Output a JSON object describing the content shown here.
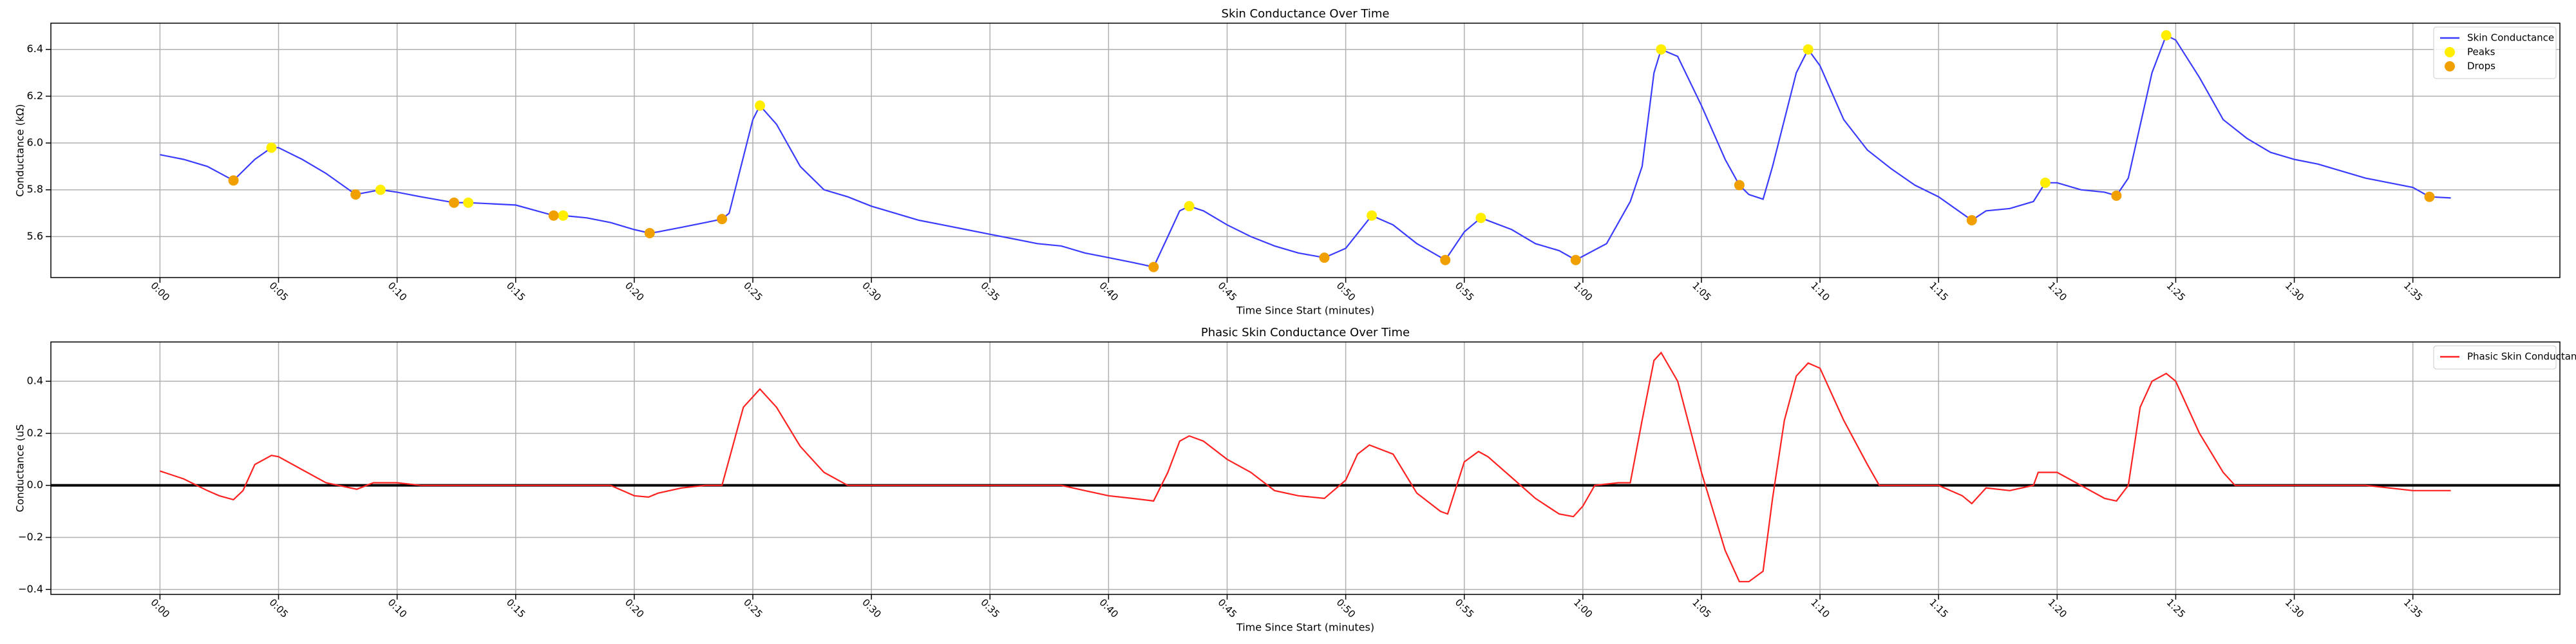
{
  "chart_data": [
    {
      "type": "line",
      "title": "Skin Conductance Over Time",
      "xlabel": "Time Since Start (minutes)",
      "ylabel": "Conductance (kΩ)",
      "xlim": [
        -4.6,
        101.2
      ],
      "ylim": [
        5.425,
        6.512
      ],
      "grid": true,
      "legend": "upper right",
      "xticks": [
        {
          "value": 0,
          "label": "0:00"
        },
        {
          "value": 5,
          "label": "0:05"
        },
        {
          "value": 10,
          "label": "0:10"
        },
        {
          "value": 15,
          "label": "0:15"
        },
        {
          "value": 20,
          "label": "0:20"
        },
        {
          "value": 25,
          "label": "0:25"
        },
        {
          "value": 30,
          "label": "0:30"
        },
        {
          "value": 35,
          "label": "0:35"
        },
        {
          "value": 40,
          "label": "0:40"
        },
        {
          "value": 45,
          "label": "0:45"
        },
        {
          "value": 50,
          "label": "0:50"
        },
        {
          "value": 55,
          "label": "0:55"
        },
        {
          "value": 60,
          "label": "1:00"
        },
        {
          "value": 65,
          "label": "1:05"
        },
        {
          "value": 70,
          "label": "1:10"
        },
        {
          "value": 75,
          "label": "1:15"
        },
        {
          "value": 80,
          "label": "1:20"
        },
        {
          "value": 85,
          "label": "1:25"
        },
        {
          "value": 90,
          "label": "1:30"
        },
        {
          "value": 95,
          "label": "1:35"
        }
      ],
      "yticks": [
        5.6,
        5.8,
        {
          "value": 6,
          "label": "6.0"
        },
        6.2,
        6.4
      ],
      "series": [
        {
          "name": "Skin Conductance",
          "color": "#3b3bff",
          "mode": "line",
          "x": [
            0,
            1,
            2,
            3.1,
            4,
            4.7,
            5,
            6,
            7,
            8.25,
            9.3,
            10,
            11,
            12.4,
            13,
            14,
            15,
            16.6,
            17,
            18,
            19,
            20,
            20.65,
            21,
            22,
            23,
            23.7,
            24,
            24.5,
            25,
            25.3,
            26,
            27,
            28,
            29,
            30,
            31,
            32,
            33,
            34,
            35,
            36,
            37,
            38,
            39,
            40,
            41,
            41.9,
            42.5,
            43,
            43.4,
            44,
            45,
            46,
            47,
            48,
            49.1,
            50,
            51.1,
            52,
            53,
            54.2,
            55,
            55.7,
            57,
            58,
            59,
            59.7,
            61,
            62,
            62.5,
            63,
            63.3,
            64,
            65,
            66,
            66.6,
            67,
            67.6,
            68,
            69,
            69.5,
            70,
            71,
            72,
            73,
            74,
            75,
            76.4,
            77,
            78,
            79,
            79.5,
            80,
            81,
            82,
            82.5,
            83,
            84,
            84.6,
            85,
            86,
            87,
            88,
            89,
            90,
            91,
            92,
            93,
            94,
            95,
            95.7,
            96.6
          ],
          "values": [
            5.95,
            5.93,
            5.9,
            5.84,
            5.93,
            5.98,
            5.98,
            5.93,
            5.87,
            5.78,
            5.8,
            5.79,
            5.77,
            5.745,
            5.745,
            5.74,
            5.735,
            5.69,
            5.69,
            5.68,
            5.66,
            5.63,
            5.615,
            5.62,
            5.64,
            5.66,
            5.675,
            5.7,
            5.9,
            6.1,
            6.16,
            6.08,
            5.9,
            5.8,
            5.77,
            5.73,
            5.7,
            5.67,
            5.65,
            5.63,
            5.61,
            5.59,
            5.57,
            5.56,
            5.53,
            5.51,
            5.49,
            5.47,
            5.6,
            5.71,
            5.73,
            5.71,
            5.65,
            5.6,
            5.56,
            5.53,
            5.51,
            5.55,
            5.69,
            5.65,
            5.57,
            5.5,
            5.62,
            5.68,
            5.63,
            5.57,
            5.54,
            5.5,
            5.57,
            5.75,
            5.9,
            6.3,
            6.4,
            6.37,
            6.16,
            5.93,
            5.82,
            5.78,
            5.76,
            5.9,
            6.3,
            6.4,
            6.33,
            6.1,
            5.97,
            5.89,
            5.82,
            5.77,
            5.67,
            5.71,
            5.72,
            5.75,
            5.83,
            5.83,
            5.8,
            5.79,
            5.775,
            5.85,
            6.3,
            6.46,
            6.44,
            6.28,
            6.1,
            6.02,
            5.96,
            5.93,
            5.91,
            5.88,
            5.85,
            5.83,
            5.81,
            5.77,
            5.765
          ]
        },
        {
          "name": "Peaks",
          "color": "#ffee00",
          "mode": "marker",
          "x": [
            4.7,
            9.3,
            13,
            17,
            25.3,
            43.4,
            51.1,
            55.7,
            63.3,
            69.5,
            79.5,
            84.6
          ],
          "values": [
            5.98,
            5.8,
            5.745,
            5.69,
            6.16,
            5.73,
            5.69,
            5.68,
            6.4,
            6.4,
            5.83,
            6.46
          ]
        },
        {
          "name": "Drops",
          "color": "#f0a000",
          "mode": "marker",
          "x": [
            3.1,
            8.25,
            12.4,
            16.6,
            20.65,
            23.7,
            41.9,
            49.1,
            54.2,
            59.7,
            66.6,
            76.4,
            82.5,
            95.7
          ],
          "values": [
            5.84,
            5.78,
            5.745,
            5.69,
            5.615,
            5.675,
            5.47,
            5.51,
            5.5,
            5.5,
            5.82,
            5.67,
            5.775,
            5.77
          ]
        }
      ]
    },
    {
      "type": "line",
      "title": "Phasic Skin Conductance Over Time",
      "xlabel": "Time Since Start (minutes)",
      "ylabel": "Conductance (uS",
      "xlim": [
        -4.6,
        101.2
      ],
      "ylim": [
        -0.419,
        0.551
      ],
      "grid": true,
      "legend": "upper right",
      "axhline": 0,
      "xticks": [
        {
          "value": 0,
          "label": "0:00"
        },
        {
          "value": 5,
          "label": "0:05"
        },
        {
          "value": 10,
          "label": "0:10"
        },
        {
          "value": 15,
          "label": "0:15"
        },
        {
          "value": 20,
          "label": "0:20"
        },
        {
          "value": 25,
          "label": "0:25"
        },
        {
          "value": 30,
          "label": "0:30"
        },
        {
          "value": 35,
          "label": "0:35"
        },
        {
          "value": 40,
          "label": "0:40"
        },
        {
          "value": 45,
          "label": "0:45"
        },
        {
          "value": 50,
          "label": "0:50"
        },
        {
          "value": 55,
          "label": "0:55"
        },
        {
          "value": 60,
          "label": "1:00"
        },
        {
          "value": 65,
          "label": "1:05"
        },
        {
          "value": 70,
          "label": "1:10"
        },
        {
          "value": 75,
          "label": "1:15"
        },
        {
          "value": 80,
          "label": "1:20"
        },
        {
          "value": 85,
          "label": "1:25"
        },
        {
          "value": 90,
          "label": "1:30"
        },
        {
          "value": 95,
          "label": "1:35"
        }
      ],
      "yticks": [
        {
          "value": -0.4,
          "label": "−0.4"
        },
        {
          "value": -0.2,
          "label": "−0.2"
        },
        {
          "value": 0,
          "label": "0.0"
        },
        0.2,
        0.4
      ],
      "series": [
        {
          "name": "Phasic Skin Conductance",
          "color": "#ff2020",
          "mode": "line",
          "x": [
            0,
            1,
            2,
            2.5,
            3.1,
            3.5,
            4,
            4.7,
            5,
            6,
            7,
            8.3,
            9,
            10,
            11,
            19,
            20,
            20.6,
            21,
            22,
            23,
            23.7,
            24,
            24.6,
            25.3,
            26,
            27,
            28,
            29,
            38,
            39,
            40,
            41,
            41.9,
            42.5,
            43,
            43.4,
            44,
            45,
            46,
            47,
            48,
            49.1,
            50,
            50.5,
            51,
            52,
            53,
            54,
            54.3,
            55,
            55.6,
            56,
            57,
            58,
            59,
            59.6,
            60,
            60.5,
            61.5,
            62,
            62.5,
            63,
            63.3,
            64,
            65,
            66,
            66.6,
            67,
            67.6,
            68,
            68.5,
            69,
            69.5,
            70,
            71,
            72,
            72.5,
            75,
            76,
            76.4,
            77,
            78,
            79,
            79.2,
            80,
            81,
            82,
            82.5,
            83,
            83.5,
            84,
            84.6,
            85,
            86,
            87,
            87.5,
            93,
            94,
            95,
            96.6
          ],
          "values": [
            0.055,
            0.025,
            -0.02,
            -0.04,
            -0.055,
            -0.02,
            0.08,
            0.115,
            0.11,
            0.06,
            0.01,
            -0.015,
            0.01,
            0.01,
            0,
            0,
            -0.04,
            -0.045,
            -0.03,
            -0.01,
            0,
            0,
            0.1,
            0.3,
            0.37,
            0.3,
            0.15,
            0.05,
            0,
            0,
            -0.02,
            -0.04,
            -0.05,
            -0.06,
            0.05,
            0.17,
            0.19,
            0.17,
            0.1,
            0.05,
            -0.02,
            -0.04,
            -0.05,
            0.02,
            0.12,
            0.155,
            0.12,
            -0.03,
            -0.1,
            -0.11,
            0.09,
            0.13,
            0.11,
            0.03,
            -0.05,
            -0.11,
            -0.12,
            -0.08,
            0,
            0.01,
            0.01,
            0.25,
            0.48,
            0.51,
            0.4,
            0.05,
            -0.25,
            -0.37,
            -0.37,
            -0.33,
            -0.05,
            0.25,
            0.42,
            0.47,
            0.45,
            0.25,
            0.08,
            0,
            0,
            -0.04,
            -0.07,
            -0.01,
            -0.02,
            0,
            0.05,
            0.05,
            0,
            -0.05,
            -0.06,
            0,
            0.3,
            0.4,
            0.43,
            0.4,
            0.2,
            0.05,
            0,
            0,
            -0.01,
            -0.02,
            -0.02
          ]
        }
      ]
    }
  ]
}
